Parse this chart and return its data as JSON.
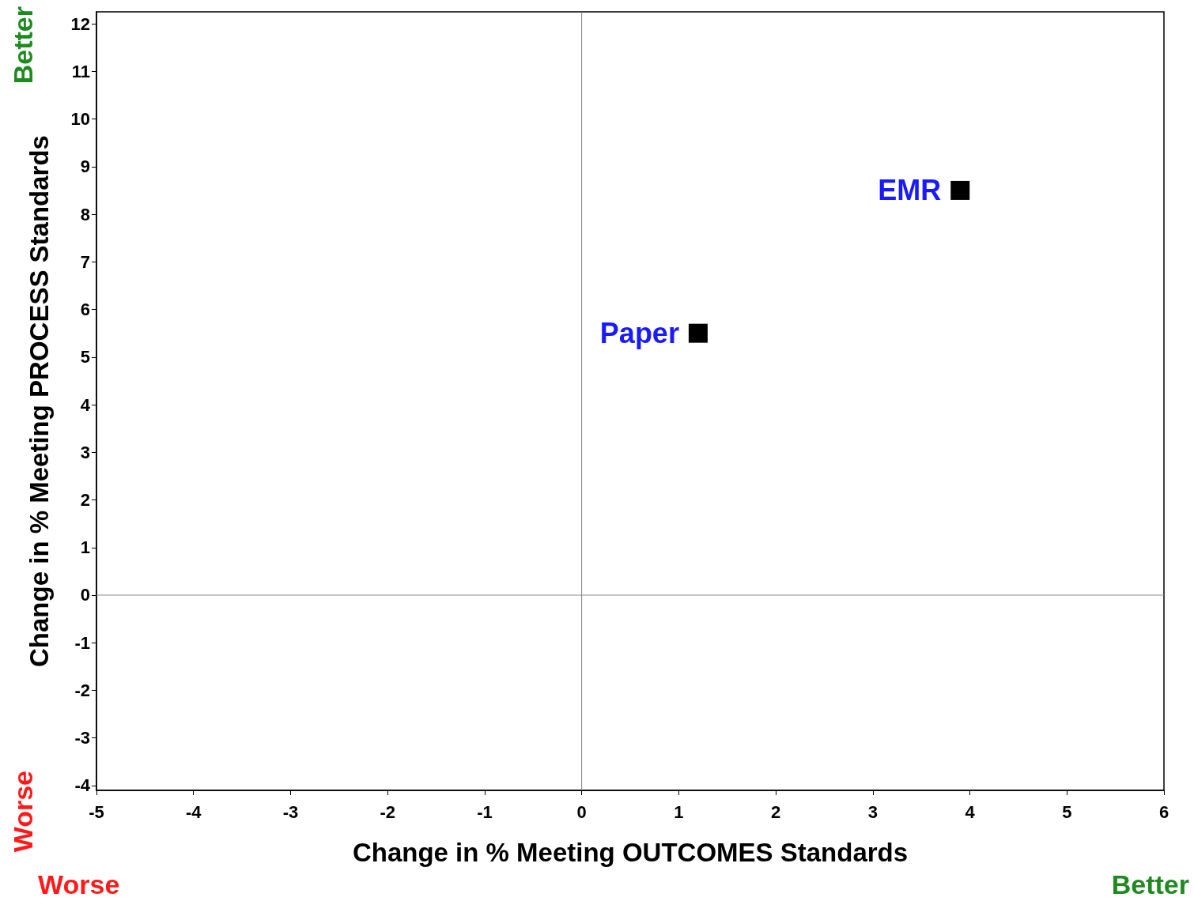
{
  "chart_data": {
    "type": "scatter",
    "xlabel": "Change in % Meeting OUTCOMES Standards",
    "ylabel": "Change in % Meeting PROCESS Standards",
    "series": [
      {
        "name": "Paper",
        "color": "#000000",
        "x": [
          1.2
        ],
        "values": [
          5.5
        ]
      },
      {
        "name": "EMR",
        "color": "#000000",
        "x": [
          3.9
        ],
        "values": [
          8.5
        ]
      }
    ],
    "xlim": [
      -5,
      6
    ],
    "xticks": [
      -5,
      -4,
      -3,
      -2,
      -1,
      0,
      1,
      2,
      3,
      4,
      5,
      6
    ],
    "ylim": [
      -4.1,
      12.25
    ],
    "yticks": [
      -4,
      -3,
      -2,
      -1,
      0,
      1,
      2,
      3,
      4,
      5,
      6,
      7,
      8,
      9,
      10,
      11,
      12
    ],
    "ref_lines": [
      {
        "axis": "x",
        "value": 0,
        "color": "#808080"
      },
      {
        "axis": "y",
        "value": 0,
        "color": "#8c8c8c"
      }
    ],
    "annotations": [
      "Better",
      "Worse",
      "Worse",
      "Better"
    ],
    "marker": "square",
    "grid": false,
    "legend": false
  }
}
